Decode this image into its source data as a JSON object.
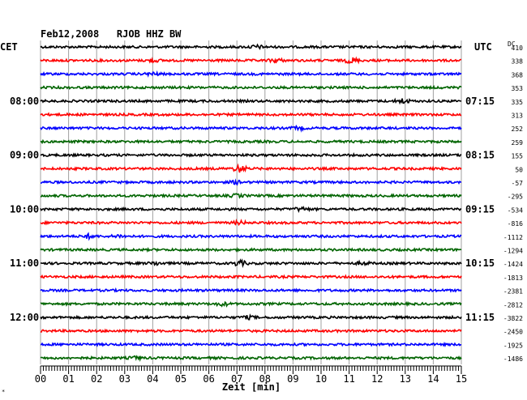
{
  "chart_data": {
    "type": "line",
    "title": "Feb12,2008   RJOB HHZ BW",
    "left_label": "CET",
    "right_label": "UTC",
    "dc_label": "DC",
    "xlabel": "Zeit [min]",
    "xlim": [
      0,
      15
    ],
    "x_ticks": [
      "00",
      "01",
      "02",
      "03",
      "04",
      "05",
      "06",
      "07",
      "08",
      "09",
      "10",
      "11",
      "12",
      "13",
      "14",
      "15"
    ],
    "cet_times": [
      "08:00",
      "09:00",
      "10:00",
      "11:00",
      "12:00"
    ],
    "utc_times": [
      "07:15",
      "08:15",
      "09:15",
      "10:15",
      "11:15"
    ],
    "time_label_rows": [
      4,
      8,
      12,
      16,
      20
    ],
    "colors": [
      "#000000",
      "#ff0000",
      "#0000ff",
      "#006400"
    ],
    "dc_values": [
      410,
      338,
      368,
      353,
      335,
      313,
      252,
      259,
      155,
      50,
      -57,
      -295,
      -534,
      -816,
      -1112,
      -1294,
      -1424,
      -1813,
      -2381,
      -2812,
      -3822,
      -2450,
      -1925,
      -1486
    ],
    "events": [
      {
        "trace": 0,
        "minute": 7.7,
        "amp": 1.8
      },
      {
        "trace": 1,
        "minute": 4.0,
        "amp": 1.6
      },
      {
        "trace": 1,
        "minute": 8.4,
        "amp": 2.2
      },
      {
        "trace": 1,
        "minute": 11.1,
        "amp": 3.0
      },
      {
        "trace": 2,
        "minute": 4.0,
        "amp": 1.6
      },
      {
        "trace": 4,
        "minute": 12.9,
        "amp": 2.6
      },
      {
        "trace": 6,
        "minute": 9.2,
        "amp": 1.6
      },
      {
        "trace": 9,
        "minute": 7.1,
        "amp": 4.0
      },
      {
        "trace": 10,
        "minute": 7.0,
        "amp": 1.8
      },
      {
        "trace": 11,
        "minute": 7.0,
        "amp": 1.5
      },
      {
        "trace": 12,
        "minute": 9.3,
        "amp": 2.0
      },
      {
        "trace": 13,
        "minute": 7.1,
        "amp": 1.8
      },
      {
        "trace": 14,
        "minute": 1.7,
        "amp": 2.2
      },
      {
        "trace": 14,
        "minute": 2.8,
        "amp": 1.5
      },
      {
        "trace": 16,
        "minute": 4.1,
        "amp": 1.6
      },
      {
        "trace": 16,
        "minute": 7.1,
        "amp": 3.0
      },
      {
        "trace": 16,
        "minute": 11.5,
        "amp": 1.5
      },
      {
        "trace": 19,
        "minute": 6.5,
        "amp": 1.8
      },
      {
        "trace": 20,
        "minute": 7.4,
        "amp": 1.6
      },
      {
        "trace": 23,
        "minute": 3.4,
        "amp": 1.5
      }
    ]
  }
}
